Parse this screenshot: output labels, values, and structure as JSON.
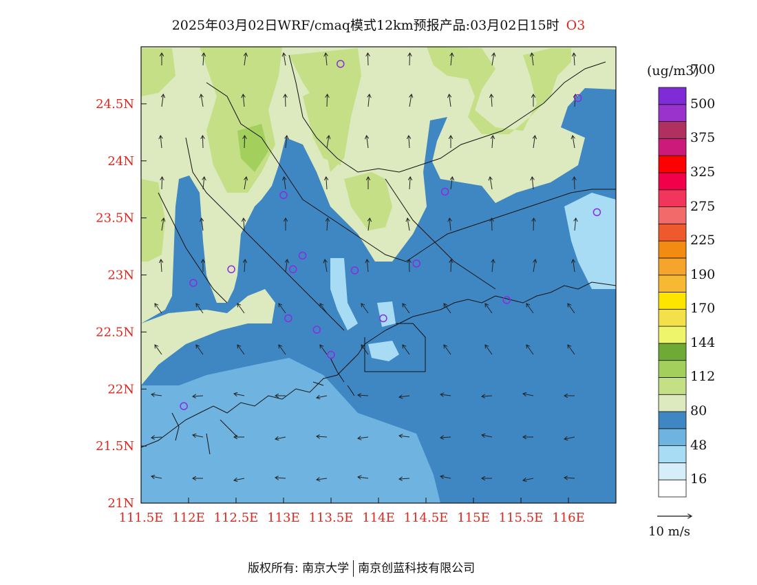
{
  "title": {
    "main": "2025年03月02日WRF/cmaq模式12km预报产品:03月02日15时",
    "pollutant": "O3"
  },
  "axes": {
    "lon_labels": [
      "111.5E",
      "112E",
      "112.5E",
      "113E",
      "113.5E",
      "114E",
      "114.5E",
      "115E",
      "115.5E",
      "116E"
    ],
    "lon_values": [
      111.5,
      112,
      112.5,
      113,
      113.5,
      114,
      114.5,
      115,
      115.5,
      116
    ],
    "lat_labels": [
      "21N",
      "21.5N",
      "22N",
      "22.5N",
      "23N",
      "23.5N",
      "24N",
      "24.5N"
    ],
    "lat_values": [
      21,
      21.5,
      22,
      22.5,
      23,
      23.5,
      24,
      24.5
    ],
    "lon_range": [
      111.5,
      116.5
    ],
    "lat_range": [
      21,
      25
    ]
  },
  "colorbar": {
    "unit": "(ug/m3)",
    "labels": [
      "16",
      "48",
      "80",
      "112",
      "144",
      "170",
      "190",
      "225",
      "275",
      "325",
      "375",
      "500",
      "700"
    ],
    "colors": [
      "#ffffff",
      "#d6eefa",
      "#a8dcf4",
      "#6fb3e0",
      "#3f87c2",
      "#dde9be",
      "#c4df86",
      "#a3cf5c",
      "#6faa34",
      "#eef56a",
      "#f3e04a",
      "#fde500",
      "#f7b832",
      "#f6a52c",
      "#f38b12",
      "#ef5a2c",
      "#f36a6a",
      "#f2355a",
      "#f3004a",
      "#ff0000",
      "#cc1a7a",
      "#b03060",
      "#9933cc",
      "#7f2bd6"
    ]
  },
  "vector_legend": {
    "label": "10  m/s"
  },
  "stations": [
    [
      113.6,
      24.85
    ],
    [
      116.1,
      24.55
    ],
    [
      113.0,
      23.7
    ],
    [
      114.7,
      23.73
    ],
    [
      116.3,
      23.55
    ],
    [
      112.45,
      23.05
    ],
    [
      113.2,
      23.17
    ],
    [
      113.1,
      23.05
    ],
    [
      113.75,
      23.04
    ],
    [
      114.4,
      23.1
    ],
    [
      112.05,
      22.93
    ],
    [
      113.05,
      22.62
    ],
    [
      113.35,
      22.52
    ],
    [
      114.05,
      22.62
    ],
    [
      115.35,
      22.78
    ],
    [
      113.5,
      22.3
    ],
    [
      111.95,
      21.85
    ]
  ],
  "footer": {
    "left": "版权所有: 南京大学",
    "right": "南京创蓝科技有限公司"
  }
}
